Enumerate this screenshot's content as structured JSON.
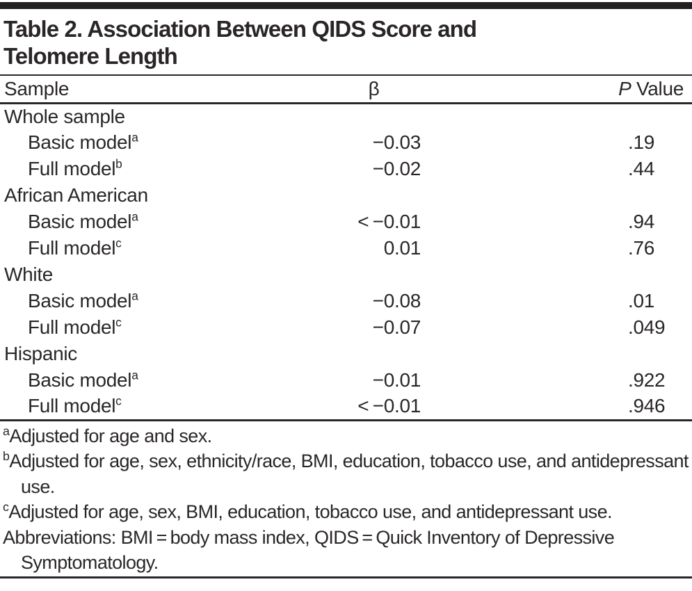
{
  "title": {
    "line1": "Table 2. Association Between QIDS Score and",
    "line2": "Telomere Length"
  },
  "header": {
    "sample": "Sample",
    "beta": "β",
    "p_italic": "P",
    "p_rest": "Value"
  },
  "rows": [
    {
      "label": "Whole sample",
      "sup": "",
      "beta": "",
      "p": "",
      "indent": false
    },
    {
      "label": "Basic model",
      "sup": "a",
      "beta": "−0.03",
      "p": ".19",
      "indent": true
    },
    {
      "label": "Full model",
      "sup": "b",
      "beta": "−0.02",
      "p": ".44",
      "indent": true
    },
    {
      "label": "African American",
      "sup": "",
      "beta": "",
      "p": "",
      "indent": false
    },
    {
      "label": "Basic model",
      "sup": "a",
      "beta": "< −0.01",
      "p": ".94",
      "indent": true
    },
    {
      "label": "Full model",
      "sup": "c",
      "beta": "0.01",
      "p": ".76",
      "indent": true
    },
    {
      "label": "White",
      "sup": "",
      "beta": "",
      "p": "",
      "indent": false
    },
    {
      "label": "Basic model",
      "sup": "a",
      "beta": "−0.08",
      "p": ".01",
      "indent": true
    },
    {
      "label": "Full model",
      "sup": "c",
      "beta": "−0.07",
      "p": ".049",
      "indent": true
    },
    {
      "label": "Hispanic",
      "sup": "",
      "beta": "",
      "p": "",
      "indent": false
    },
    {
      "label": "Basic model",
      "sup": "a",
      "beta": "−0.01",
      "p": ".922",
      "indent": true
    },
    {
      "label": "Full model",
      "sup": "c",
      "beta": "< −0.01",
      "p": ".946",
      "indent": true
    }
  ],
  "footnotes": [
    {
      "sup": "a",
      "text": "Adjusted for age and sex."
    },
    {
      "sup": "b",
      "text": "Adjusted for age, sex, ethnicity/race, BMI, education, tobacco use, and antidepressant use."
    },
    {
      "sup": "c",
      "text": "Adjusted for age, sex, BMI, education, tobacco use, and antidepressant use."
    },
    {
      "sup": "",
      "text": "Abbreviations: BMI = body mass index, QIDS = Quick Inventory of Depressive Symptomatology."
    }
  ],
  "colors": {
    "text": "#2a2627",
    "rule": "#2a2627",
    "top_bar": "#231f20",
    "background": "#ffffff"
  }
}
